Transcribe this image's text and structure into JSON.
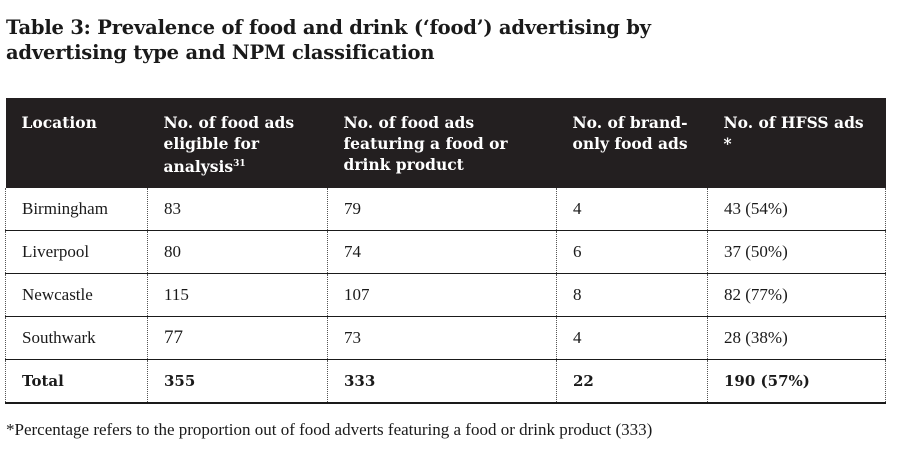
{
  "title": "Table 3: Prevalence of food and drink (‘food’) advertising by advertising type and NPM classification",
  "table": {
    "headers": [
      {
        "label": "Location",
        "sup": ""
      },
      {
        "label": "No. of food ads eligible for analysis",
        "sup": "31"
      },
      {
        "label": "No. of food ads featuring a food or drink product",
        "sup": ""
      },
      {
        "label": "No. of brand-only food ads",
        "sup": ""
      },
      {
        "label": "No. of HFSS ads *",
        "sup": ""
      }
    ],
    "rows": [
      [
        "Birmingham",
        "83",
        "79",
        "4",
        "43 (54%)"
      ],
      [
        "Liverpool",
        "80",
        "74",
        "6",
        "37 (50%)"
      ],
      [
        "Newcastle",
        "115",
        "107",
        "8",
        "82 (77%)"
      ],
      [
        "Southwark",
        "77",
        "73",
        "4",
        "28 (38%)"
      ]
    ],
    "total": [
      "Total",
      "355",
      "333",
      "22",
      "190 (57%)"
    ]
  },
  "footnote": "*Percentage refers to the proportion out of food adverts featuring a food or drink product (333)"
}
